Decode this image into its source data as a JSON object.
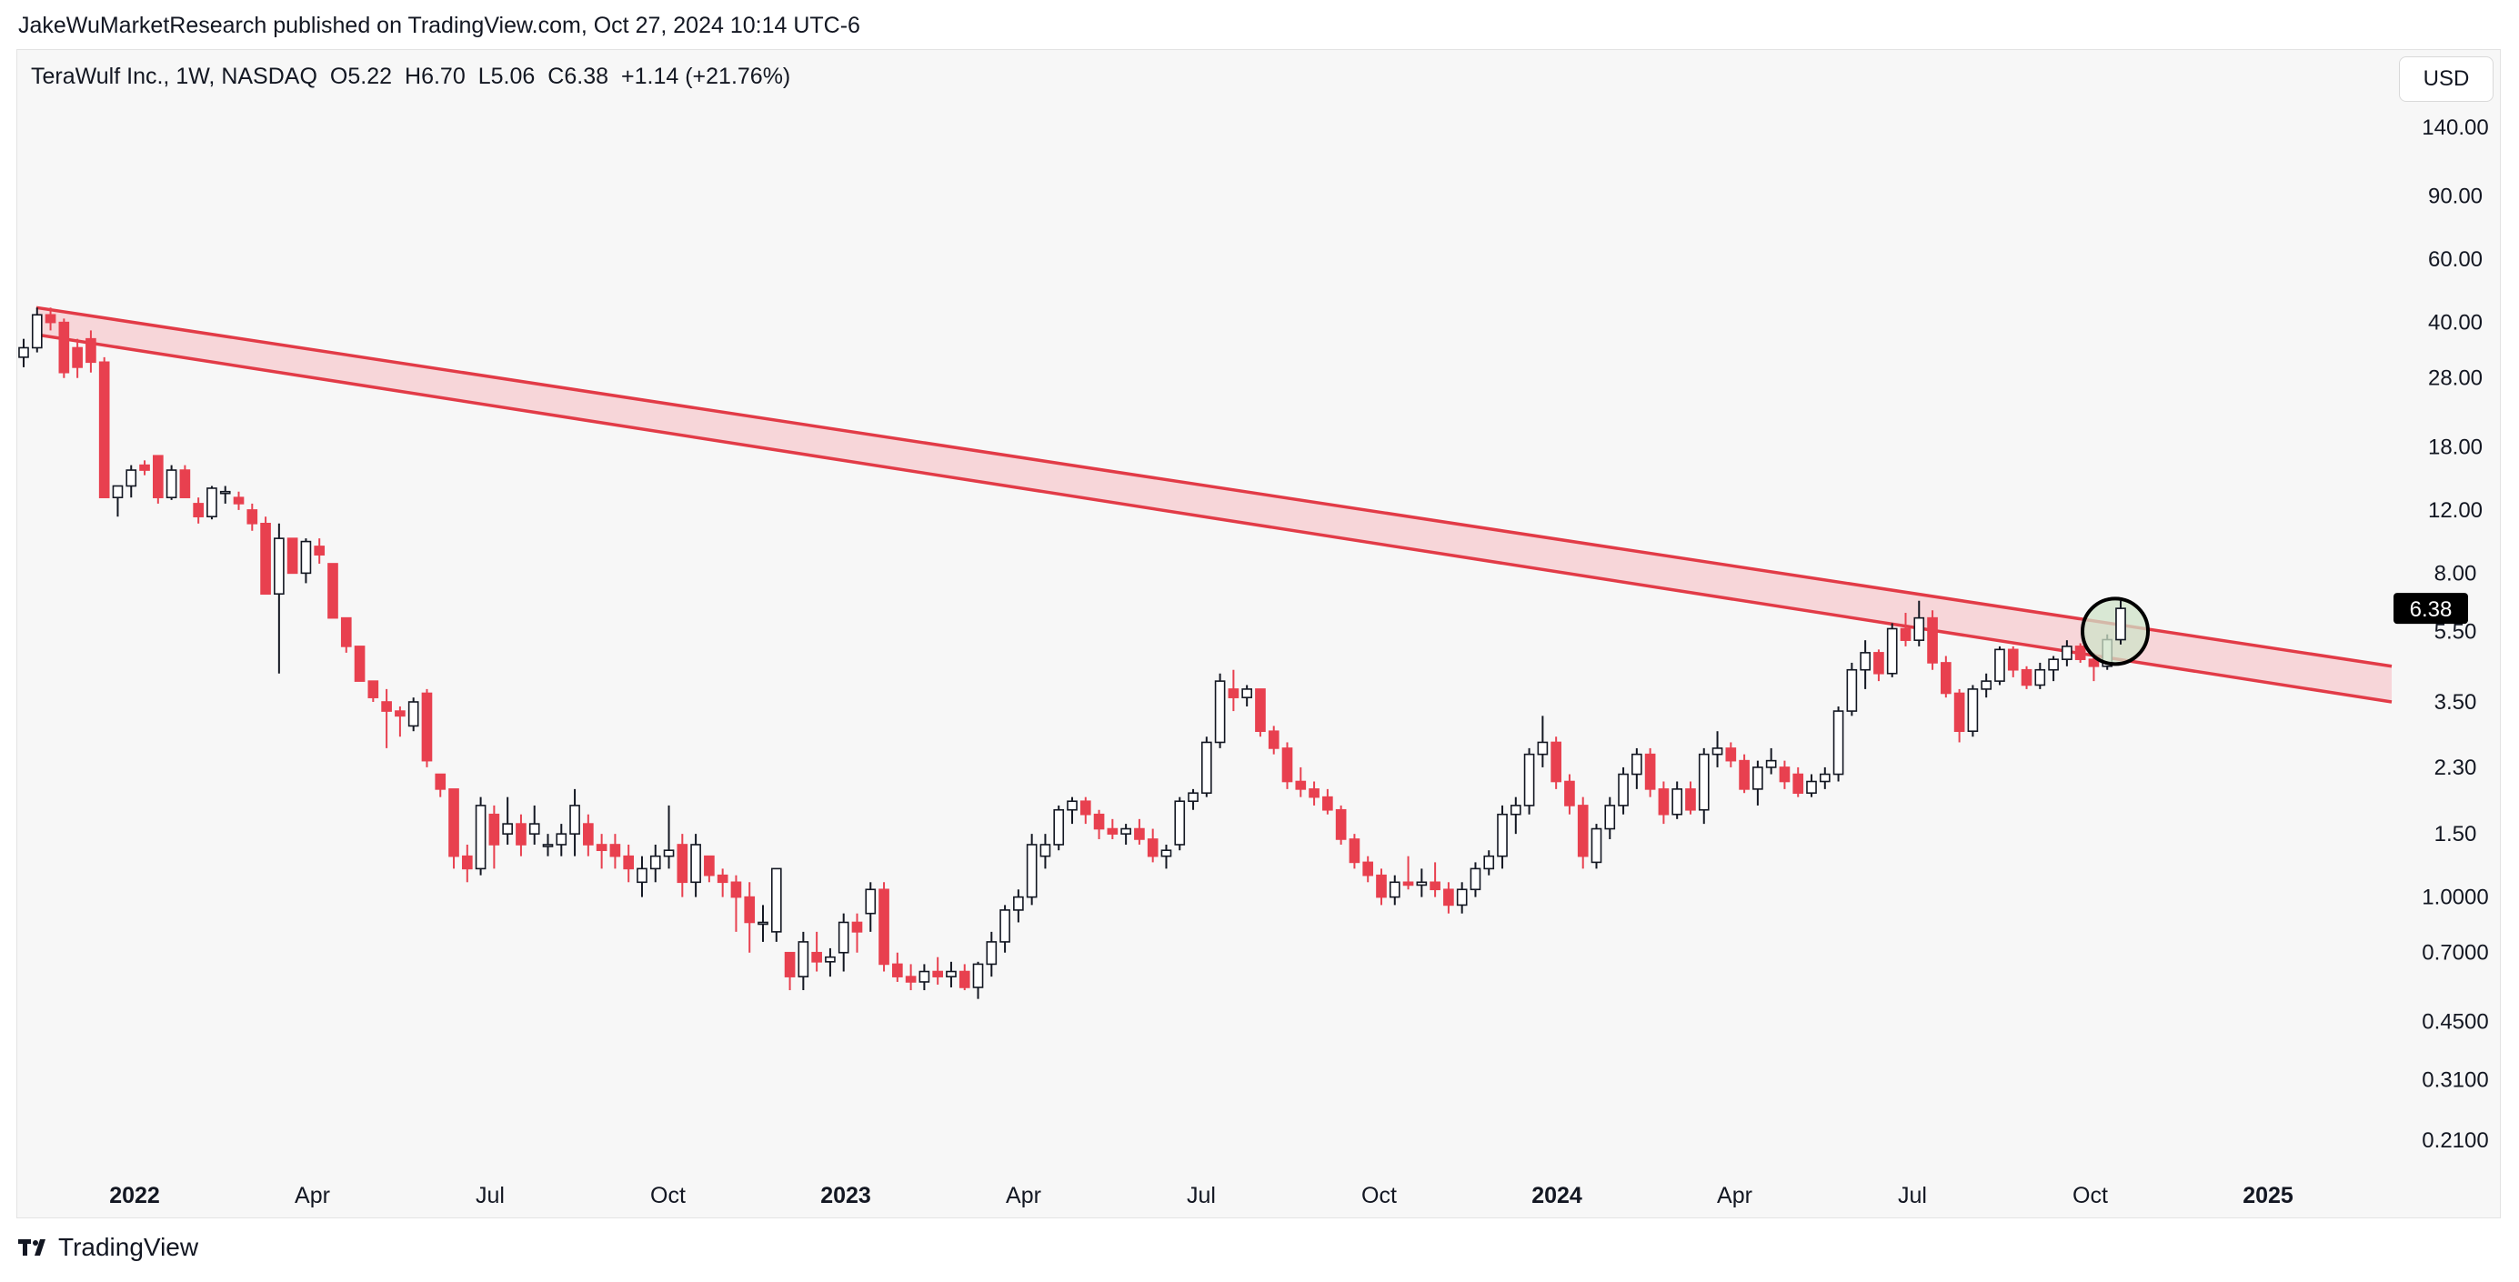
{
  "header": {
    "published": "JakeWuMarketResearch published on TradingView.com, Oct 27, 2024 10:14 UTC-6"
  },
  "legend": {
    "symbol": "TeraWulf Inc., 1W, NASDAQ",
    "open": "O5.22",
    "high": "H6.70",
    "low": "L5.06",
    "close": "C6.38",
    "change": "+1.14 (+21.76%)"
  },
  "currency_button": "USD",
  "last_price_label": "6.38",
  "footer": {
    "brand": "TradingView"
  },
  "colors": {
    "up_body": "#ffffff",
    "up_border": "#131722",
    "down": "#e8404f",
    "trend": "#e23b47",
    "band_fill": "#f7d6d9",
    "marker_fill": "#cfe3c8",
    "last_price_bg": "#000000"
  },
  "chart_data": {
    "type": "candlestick",
    "title": "TeraWulf Inc., 1W, NASDAQ",
    "y_scale": "log",
    "y_ticks": [
      "140.00",
      "90.00",
      "60.00",
      "40.00",
      "28.00",
      "18.00",
      "12.00",
      "8.00",
      "5.50",
      "3.50",
      "2.30",
      "1.50",
      "1.0000",
      "0.7000",
      "0.4500",
      "0.3100",
      "0.2100"
    ],
    "x_ticks": [
      {
        "label": "2022",
        "bold": true
      },
      {
        "label": "Apr",
        "bold": false
      },
      {
        "label": "Jul",
        "bold": false
      },
      {
        "label": "Oct",
        "bold": false
      },
      {
        "label": "2023",
        "bold": true
      },
      {
        "label": "Apr",
        "bold": false
      },
      {
        "label": "Jul",
        "bold": false
      },
      {
        "label": "Oct",
        "bold": false
      },
      {
        "label": "2024",
        "bold": true
      },
      {
        "label": "Apr",
        "bold": false
      },
      {
        "label": "Jul",
        "bold": false
      },
      {
        "label": "Oct",
        "bold": false
      },
      {
        "label": "2025",
        "bold": true
      }
    ],
    "candles": [
      [
        32,
        36,
        30,
        34
      ],
      [
        34,
        44,
        33,
        42
      ],
      [
        42,
        44,
        38,
        40
      ],
      [
        40,
        41,
        28,
        29
      ],
      [
        34,
        36,
        28,
        30
      ],
      [
        36,
        38,
        29,
        31
      ],
      [
        31,
        32,
        13,
        13
      ],
      [
        13,
        14,
        11.5,
        14
      ],
      [
        14,
        16,
        13,
        15.5
      ],
      [
        16,
        16.5,
        15,
        15.5
      ],
      [
        17,
        17,
        12.5,
        13
      ],
      [
        13,
        16,
        12.8,
        15.5
      ],
      [
        15.5,
        16,
        13,
        13
      ],
      [
        12.5,
        13,
        11,
        11.5
      ],
      [
        11.5,
        14,
        11.3,
        13.8
      ],
      [
        13.5,
        14,
        12.5,
        13.5
      ],
      [
        13,
        13.5,
        12,
        12.5
      ],
      [
        12,
        12.5,
        10.5,
        11
      ],
      [
        11,
        11.5,
        7,
        7
      ],
      [
        7,
        11,
        4.2,
        10
      ],
      [
        10,
        10,
        8,
        8
      ],
      [
        8,
        10,
        7.5,
        9.8
      ],
      [
        9.5,
        10,
        8.5,
        9
      ],
      [
        8.5,
        8.5,
        6,
        6
      ],
      [
        6,
        6,
        4.8,
        5
      ],
      [
        5,
        5,
        4,
        4
      ],
      [
        4,
        4,
        3.5,
        3.6
      ],
      [
        3.5,
        3.8,
        2.6,
        3.3
      ],
      [
        3.3,
        3.4,
        2.8,
        3.2
      ],
      [
        3,
        3.6,
        2.9,
        3.5
      ],
      [
        3.7,
        3.8,
        2.3,
        2.4
      ],
      [
        2.2,
        2.2,
        1.9,
        2
      ],
      [
        2,
        2,
        1.2,
        1.3
      ],
      [
        1.3,
        1.4,
        1.1,
        1.2
      ],
      [
        1.2,
        1.9,
        1.15,
        1.8
      ],
      [
        1.7,
        1.8,
        1.2,
        1.4
      ],
      [
        1.5,
        1.9,
        1.4,
        1.6
      ],
      [
        1.6,
        1.7,
        1.3,
        1.4
      ],
      [
        1.5,
        1.8,
        1.4,
        1.6
      ],
      [
        1.4,
        1.5,
        1.3,
        1.4
      ],
      [
        1.4,
        1.6,
        1.3,
        1.5
      ],
      [
        1.5,
        2,
        1.3,
        1.8
      ],
      [
        1.6,
        1.7,
        1.3,
        1.4
      ],
      [
        1.4,
        1.5,
        1.2,
        1.35
      ],
      [
        1.4,
        1.5,
        1.2,
        1.3
      ],
      [
        1.3,
        1.4,
        1.1,
        1.2
      ],
      [
        1.1,
        1.3,
        1.0,
        1.2
      ],
      [
        1.2,
        1.4,
        1.1,
        1.3
      ],
      [
        1.3,
        1.8,
        1.2,
        1.35
      ],
      [
        1.4,
        1.5,
        1.0,
        1.1
      ],
      [
        1.1,
        1.5,
        1.0,
        1.4
      ],
      [
        1.3,
        1.3,
        1.1,
        1.15
      ],
      [
        1.15,
        1.2,
        1.0,
        1.1
      ],
      [
        1.1,
        1.15,
        0.8,
        1.0
      ],
      [
        1.0,
        1.1,
        0.7,
        0.85
      ],
      [
        0.85,
        0.95,
        0.75,
        0.85
      ],
      [
        0.8,
        1.2,
        0.75,
        1.2
      ],
      [
        0.7,
        0.7,
        0.55,
        0.6
      ],
      [
        0.6,
        0.8,
        0.55,
        0.75
      ],
      [
        0.7,
        0.8,
        0.62,
        0.66
      ],
      [
        0.66,
        0.72,
        0.6,
        0.68
      ],
      [
        0.7,
        0.9,
        0.62,
        0.85
      ],
      [
        0.85,
        0.9,
        0.7,
        0.8
      ],
      [
        0.9,
        1.1,
        0.8,
        1.05
      ],
      [
        1.05,
        1.1,
        0.62,
        0.65
      ],
      [
        0.65,
        0.7,
        0.58,
        0.6
      ],
      [
        0.6,
        0.65,
        0.55,
        0.58
      ],
      [
        0.58,
        0.65,
        0.55,
        0.62
      ],
      [
        0.62,
        0.68,
        0.57,
        0.6
      ],
      [
        0.6,
        0.66,
        0.56,
        0.62
      ],
      [
        0.62,
        0.65,
        0.55,
        0.56
      ],
      [
        0.56,
        0.66,
        0.52,
        0.65
      ],
      [
        0.65,
        0.8,
        0.6,
        0.75
      ],
      [
        0.75,
        0.95,
        0.7,
        0.92
      ],
      [
        0.92,
        1.05,
        0.85,
        1.0
      ],
      [
        1.0,
        1.5,
        0.95,
        1.4
      ],
      [
        1.3,
        1.5,
        1.2,
        1.4
      ],
      [
        1.4,
        1.8,
        1.35,
        1.75
      ],
      [
        1.75,
        1.9,
        1.6,
        1.85
      ],
      [
        1.85,
        1.9,
        1.6,
        1.7
      ],
      [
        1.7,
        1.75,
        1.45,
        1.55
      ],
      [
        1.55,
        1.65,
        1.45,
        1.5
      ],
      [
        1.5,
        1.6,
        1.4,
        1.55
      ],
      [
        1.55,
        1.65,
        1.4,
        1.45
      ],
      [
        1.45,
        1.55,
        1.25,
        1.3
      ],
      [
        1.3,
        1.4,
        1.2,
        1.35
      ],
      [
        1.4,
        1.9,
        1.35,
        1.85
      ],
      [
        1.85,
        2,
        1.75,
        1.95
      ],
      [
        1.95,
        2.8,
        1.9,
        2.7
      ],
      [
        2.7,
        4.2,
        2.6,
        4
      ],
      [
        3.8,
        4.3,
        3.3,
        3.6
      ],
      [
        3.6,
        3.9,
        3.4,
        3.8
      ],
      [
        3.8,
        3.8,
        2.8,
        2.9
      ],
      [
        2.9,
        3.0,
        2.5,
        2.6
      ],
      [
        2.6,
        2.7,
        2.0,
        2.1
      ],
      [
        2.1,
        2.3,
        1.9,
        2.0
      ],
      [
        2.0,
        2.1,
        1.8,
        1.9
      ],
      [
        1.9,
        2.0,
        1.7,
        1.75
      ],
      [
        1.75,
        1.8,
        1.4,
        1.45
      ],
      [
        1.45,
        1.5,
        1.2,
        1.25
      ],
      [
        1.25,
        1.3,
        1.1,
        1.15
      ],
      [
        1.15,
        1.2,
        0.95,
        1.0
      ],
      [
        1.0,
        1.15,
        0.95,
        1.1
      ],
      [
        1.1,
        1.3,
        1.05,
        1.08
      ],
      [
        1.08,
        1.2,
        1.0,
        1.1
      ],
      [
        1.1,
        1.25,
        1.0,
        1.05
      ],
      [
        1.05,
        1.1,
        0.9,
        0.95
      ],
      [
        0.95,
        1.1,
        0.9,
        1.05
      ],
      [
        1.05,
        1.25,
        1.0,
        1.2
      ],
      [
        1.2,
        1.35,
        1.15,
        1.3
      ],
      [
        1.3,
        1.8,
        1.2,
        1.7
      ],
      [
        1.7,
        1.9,
        1.5,
        1.8
      ],
      [
        1.8,
        2.6,
        1.7,
        2.5
      ],
      [
        2.5,
        3.2,
        2.3,
        2.7
      ],
      [
        2.7,
        2.8,
        2.0,
        2.1
      ],
      [
        2.1,
        2.2,
        1.7,
        1.8
      ],
      [
        1.8,
        1.9,
        1.2,
        1.3
      ],
      [
        1.25,
        1.6,
        1.2,
        1.55
      ],
      [
        1.55,
        1.9,
        1.45,
        1.8
      ],
      [
        1.8,
        2.3,
        1.7,
        2.2
      ],
      [
        2.2,
        2.6,
        2.0,
        2.5
      ],
      [
        2.5,
        2.6,
        1.9,
        2.0
      ],
      [
        2.0,
        2.1,
        1.6,
        1.7
      ],
      [
        1.7,
        2.1,
        1.65,
        2.0
      ],
      [
        2.0,
        2.1,
        1.7,
        1.75
      ],
      [
        1.75,
        2.6,
        1.6,
        2.5
      ],
      [
        2.5,
        2.9,
        2.3,
        2.6
      ],
      [
        2.6,
        2.7,
        2.3,
        2.4
      ],
      [
        2.4,
        2.5,
        1.95,
        2.0
      ],
      [
        2.0,
        2.4,
        1.8,
        2.3
      ],
      [
        2.3,
        2.6,
        2.2,
        2.4
      ],
      [
        2.3,
        2.4,
        2.0,
        2.1
      ],
      [
        2.2,
        2.3,
        1.9,
        1.95
      ],
      [
        1.95,
        2.2,
        1.9,
        2.1
      ],
      [
        2.1,
        2.3,
        2.0,
        2.2
      ],
      [
        2.2,
        3.4,
        2.1,
        3.3
      ],
      [
        3.3,
        4.5,
        3.2,
        4.3
      ],
      [
        4.3,
        5.2,
        3.8,
        4.8
      ],
      [
        4.8,
        4.9,
        4.0,
        4.2
      ],
      [
        4.2,
        5.8,
        4.1,
        5.6
      ],
      [
        5.6,
        6.2,
        5.0,
        5.2
      ],
      [
        5.2,
        6.7,
        5.0,
        6.0
      ],
      [
        6.0,
        6.3,
        4.3,
        4.5
      ],
      [
        4.5,
        4.7,
        3.6,
        3.7
      ],
      [
        3.7,
        3.8,
        2.7,
        2.9
      ],
      [
        2.9,
        3.9,
        2.8,
        3.8
      ],
      [
        3.8,
        4.2,
        3.6,
        4.0
      ],
      [
        4.0,
        5.0,
        3.9,
        4.9
      ],
      [
        4.9,
        5.0,
        4.1,
        4.3
      ],
      [
        4.3,
        4.4,
        3.8,
        3.9
      ],
      [
        3.9,
        4.5,
        3.8,
        4.3
      ],
      [
        4.3,
        4.7,
        4.0,
        4.6
      ],
      [
        4.6,
        5.2,
        4.4,
        5.0
      ],
      [
        5.0,
        5.1,
        4.5,
        4.6
      ],
      [
        4.6,
        4.8,
        4.0,
        4.4
      ],
      [
        4.4,
        5.4,
        4.3,
        5.22
      ],
      [
        5.22,
        6.7,
        5.06,
        6.38
      ]
    ],
    "trend_band": {
      "upper": [
        [
          0,
          44
        ],
        [
          1,
          4.4
        ]
      ],
      "lower": [
        [
          0,
          37
        ],
        [
          1,
          3.5
        ]
      ]
    },
    "last_price": 6.38
  }
}
